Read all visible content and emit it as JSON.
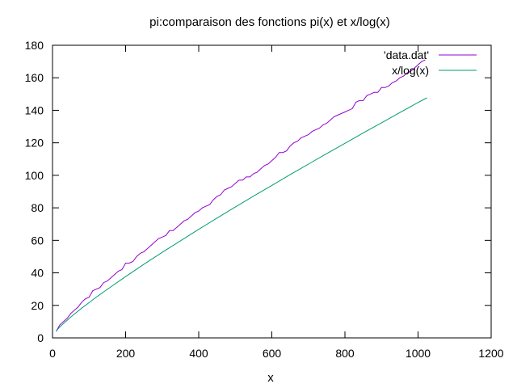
{
  "chart_data": {
    "type": "line",
    "title": "pi:comparaison des fonctions pi(x) et x/log(x)",
    "xlabel": "x",
    "ylabel": "",
    "xlim": [
      0,
      1200
    ],
    "ylim": [
      0,
      180
    ],
    "xticks": [
      0,
      200,
      400,
      600,
      800,
      1000,
      1200
    ],
    "yticks": [
      0,
      20,
      40,
      60,
      80,
      100,
      120,
      140,
      160,
      180
    ],
    "grid": false,
    "legend_position": "top-right",
    "series": [
      {
        "name": "'data.dat'",
        "color": "#9400d3",
        "x": [
          10,
          20,
          30,
          40,
          50,
          60,
          70,
          80,
          90,
          100,
          110,
          120,
          130,
          140,
          150,
          160,
          170,
          180,
          190,
          200,
          210,
          220,
          230,
          240,
          250,
          260,
          270,
          280,
          290,
          300,
          310,
          320,
          330,
          340,
          350,
          360,
          370,
          380,
          390,
          400,
          410,
          420,
          430,
          440,
          450,
          460,
          470,
          480,
          490,
          500,
          510,
          520,
          530,
          540,
          550,
          560,
          570,
          580,
          590,
          600,
          610,
          620,
          630,
          640,
          650,
          660,
          670,
          680,
          690,
          700,
          710,
          720,
          730,
          740,
          750,
          760,
          770,
          780,
          790,
          800,
          810,
          820,
          830,
          840,
          850,
          860,
          870,
          880,
          890,
          900,
          910,
          920,
          930,
          940,
          950,
          960,
          970,
          980,
          990,
          1000,
          1010,
          1020
        ],
        "y": [
          4,
          8,
          10,
          12,
          15,
          17,
          19,
          22,
          24,
          25,
          29,
          30,
          31,
          34,
          35,
          37,
          39,
          41,
          42,
          46,
          46,
          47,
          50,
          52,
          53,
          55,
          57,
          59,
          61,
          62,
          63,
          66,
          66,
          68,
          70,
          72,
          73,
          75,
          77,
          78,
          80,
          81,
          82,
          85,
          87,
          88,
          91,
          92,
          93,
          95,
          97,
          97,
          99,
          99,
          101,
          102,
          104,
          106,
          107,
          109,
          111,
          114,
          114,
          115,
          118,
          120,
          121,
          123,
          124,
          125,
          127,
          128,
          129,
          131,
          132,
          134,
          136,
          137,
          138,
          139,
          140,
          141,
          145,
          146,
          146,
          149,
          150,
          151,
          151,
          154,
          154,
          155,
          157,
          158,
          160,
          161,
          163,
          164,
          166,
          168,
          170,
          171
        ]
      },
      {
        "name": "x/log(x)",
        "color": "#009e73",
        "x": [
          10,
          20,
          30,
          40,
          50,
          60,
          80,
          100,
          120,
          150,
          200,
          250,
          300,
          350,
          400,
          450,
          500,
          550,
          600,
          650,
          700,
          750,
          800,
          850,
          900,
          950,
          1000,
          1024
        ],
        "y": [
          4.3,
          6.7,
          8.8,
          10.8,
          12.8,
          14.7,
          18.3,
          21.7,
          25.1,
          29.9,
          37.7,
          45.3,
          52.6,
          59.7,
          66.8,
          73.7,
          80.5,
          87.2,
          93.8,
          100.4,
          106.9,
          113.3,
          119.7,
          126.1,
          132.3,
          138.6,
          144.8,
          147.7
        ]
      }
    ]
  }
}
